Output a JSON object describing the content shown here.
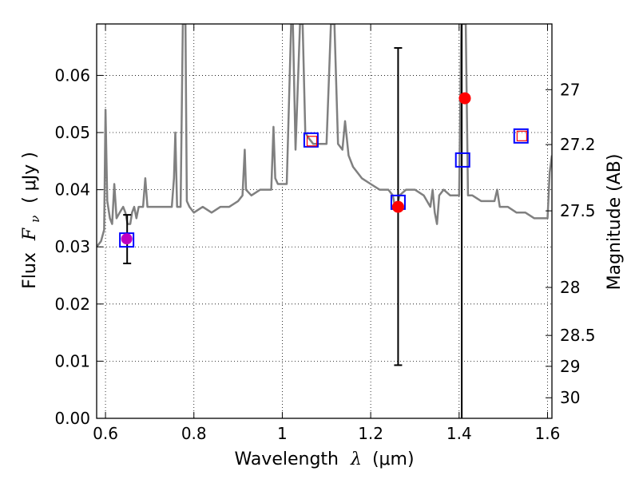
{
  "chart_data": {
    "type": "scatter",
    "xlabel_text": "Wavelength",
    "xlabel_math": "λ",
    "xlabel_unit": "(μm)",
    "ylabel_text": "Flux",
    "ylabel_math": "F",
    "ylabel_sub": "ν",
    "ylabel_unit": "( μJy )",
    "y2label": "Magnitude (AB)",
    "xlim": [
      0.58,
      1.61
    ],
    "ylim": [
      0.0,
      0.069
    ],
    "grid": true,
    "x_ticks": [
      {
        "v": 0.6,
        "label": "0.6"
      },
      {
        "v": 0.8,
        "label": "0.8"
      },
      {
        "v": 1.0,
        "label": "1"
      },
      {
        "v": 1.2,
        "label": "1.2"
      },
      {
        "v": 1.4,
        "label": "1.4"
      },
      {
        "v": 1.6,
        "label": "1.6"
      }
    ],
    "y_ticks": [
      {
        "v": 0.0,
        "label": "0.00"
      },
      {
        "v": 0.01,
        "label": "0.01"
      },
      {
        "v": 0.02,
        "label": "0.02"
      },
      {
        "v": 0.03,
        "label": "0.03"
      },
      {
        "v": 0.04,
        "label": "0.04"
      },
      {
        "v": 0.05,
        "label": "0.05"
      },
      {
        "v": 0.06,
        "label": "0.06"
      }
    ],
    "mag_ticks": [
      {
        "label": "27",
        "flux": 0.0575
      },
      {
        "label": "27.2",
        "flux": 0.0479
      },
      {
        "label": "27.5",
        "flux": 0.0363
      },
      {
        "label": "28",
        "flux": 0.0229
      },
      {
        "label": "28.5",
        "flux": 0.0145
      },
      {
        "label": "29",
        "flux": 0.0091
      },
      {
        "label": "30",
        "flux": 0.0036
      }
    ],
    "sed_color": "#808080",
    "sed": [
      [
        0.58,
        0.03
      ],
      [
        0.59,
        0.031
      ],
      [
        0.597,
        0.033
      ],
      [
        0.6,
        0.054
      ],
      [
        0.604,
        0.038
      ],
      [
        0.61,
        0.035
      ],
      [
        0.615,
        0.034
      ],
      [
        0.62,
        0.041
      ],
      [
        0.625,
        0.035
      ],
      [
        0.632,
        0.036
      ],
      [
        0.64,
        0.037
      ],
      [
        0.645,
        0.036
      ],
      [
        0.65,
        0.034
      ],
      [
        0.656,
        0.034
      ],
      [
        0.66,
        0.036
      ],
      [
        0.665,
        0.037
      ],
      [
        0.67,
        0.035
      ],
      [
        0.675,
        0.037
      ],
      [
        0.685,
        0.037
      ],
      [
        0.69,
        0.042
      ],
      [
        0.695,
        0.037
      ],
      [
        0.71,
        0.037
      ],
      [
        0.73,
        0.037
      ],
      [
        0.75,
        0.037
      ],
      [
        0.755,
        0.042
      ],
      [
        0.758,
        0.05
      ],
      [
        0.762,
        0.037
      ],
      [
        0.77,
        0.037
      ],
      [
        0.775,
        0.069
      ],
      [
        0.778,
        0.069
      ],
      [
        0.781,
        0.069
      ],
      [
        0.784,
        0.038
      ],
      [
        0.79,
        0.037
      ],
      [
        0.8,
        0.036
      ],
      [
        0.82,
        0.037
      ],
      [
        0.84,
        0.036
      ],
      [
        0.86,
        0.037
      ],
      [
        0.88,
        0.037
      ],
      [
        0.9,
        0.038
      ],
      [
        0.91,
        0.039
      ],
      [
        0.915,
        0.047
      ],
      [
        0.918,
        0.04
      ],
      [
        0.93,
        0.039
      ],
      [
        0.95,
        0.04
      ],
      [
        0.97,
        0.04
      ],
      [
        0.975,
        0.04
      ],
      [
        0.98,
        0.051
      ],
      [
        0.984,
        0.042
      ],
      [
        0.99,
        0.041
      ],
      [
        1.0,
        0.041
      ],
      [
        1.01,
        0.041
      ],
      [
        1.02,
        0.069
      ],
      [
        1.024,
        0.069
      ],
      [
        1.03,
        0.047
      ],
      [
        1.04,
        0.069
      ],
      [
        1.046,
        0.069
      ],
      [
        1.052,
        0.05
      ],
      [
        1.06,
        0.049
      ],
      [
        1.07,
        0.048
      ],
      [
        1.08,
        0.048
      ],
      [
        1.09,
        0.048
      ],
      [
        1.1,
        0.048
      ],
      [
        1.11,
        0.069
      ],
      [
        1.118,
        0.069
      ],
      [
        1.126,
        0.048
      ],
      [
        1.136,
        0.047
      ],
      [
        1.142,
        0.052
      ],
      [
        1.15,
        0.046
      ],
      [
        1.16,
        0.044
      ],
      [
        1.18,
        0.042
      ],
      [
        1.2,
        0.041
      ],
      [
        1.22,
        0.04
      ],
      [
        1.24,
        0.04
      ],
      [
        1.25,
        0.039
      ],
      [
        1.255,
        0.037
      ],
      [
        1.26,
        0.037
      ],
      [
        1.265,
        0.039
      ],
      [
        1.28,
        0.04
      ],
      [
        1.3,
        0.04
      ],
      [
        1.32,
        0.039
      ],
      [
        1.335,
        0.037
      ],
      [
        1.34,
        0.04
      ],
      [
        1.345,
        0.036
      ],
      [
        1.35,
        0.034
      ],
      [
        1.355,
        0.039
      ],
      [
        1.365,
        0.04
      ],
      [
        1.38,
        0.039
      ],
      [
        1.395,
        0.039
      ],
      [
        1.4,
        0.039
      ],
      [
        1.405,
        0.069
      ],
      [
        1.41,
        0.069
      ],
      [
        1.415,
        0.069
      ],
      [
        1.42,
        0.039
      ],
      [
        1.43,
        0.039
      ],
      [
        1.45,
        0.038
      ],
      [
        1.47,
        0.038
      ],
      [
        1.48,
        0.038
      ],
      [
        1.486,
        0.04
      ],
      [
        1.492,
        0.037
      ],
      [
        1.51,
        0.037
      ],
      [
        1.53,
        0.036
      ],
      [
        1.55,
        0.036
      ],
      [
        1.57,
        0.035
      ],
      [
        1.59,
        0.035
      ],
      [
        1.6,
        0.035
      ],
      [
        1.605,
        0.043
      ],
      [
        1.61,
        0.046
      ]
    ],
    "blue_squares": [
      {
        "x": 0.648,
        "y": 0.0312
      },
      {
        "x": 1.065,
        "y": 0.0487
      },
      {
        "x": 1.262,
        "y": 0.0378
      },
      {
        "x": 1.408,
        "y": 0.0452
      },
      {
        "x": 1.54,
        "y": 0.0494
      }
    ],
    "blue_color": "#0000ff",
    "red_squares": [
      {
        "x": 1.067,
        "y": 0.0485
      },
      {
        "x": 1.542,
        "y": 0.0494
      }
    ],
    "red_circles": [
      {
        "x": 1.262,
        "y": 0.037
      },
      {
        "x": 1.413,
        "y": 0.056
      }
    ],
    "red_color": "#ff0000",
    "purple_circles": [
      {
        "x": 0.648,
        "y": 0.0314
      }
    ],
    "purple_color": "#c000c0",
    "error_bars": [
      {
        "x": 0.649,
        "low": 0.0271,
        "high": 0.0356
      },
      {
        "x": 1.262,
        "low": 0.0093,
        "high": 0.0648
      }
    ],
    "vertical_line_x": 1.406
  }
}
